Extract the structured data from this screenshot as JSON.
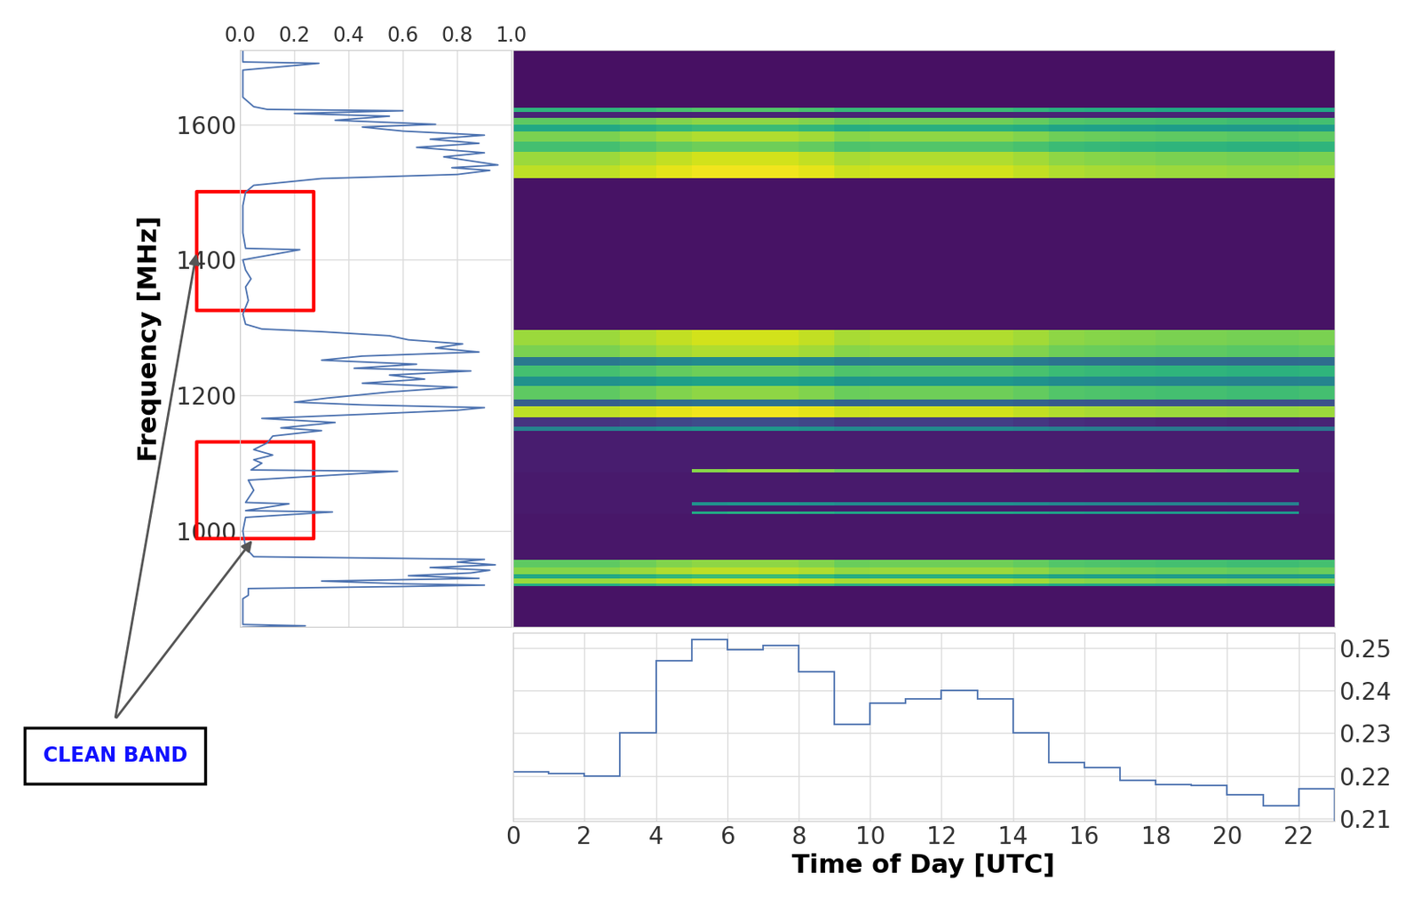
{
  "chart_data": [
    {
      "type": "line",
      "orientation": "horizontal",
      "ylabel": "Frequency [MHz]",
      "color": "#4c72b0",
      "grid": true,
      "xlim": [
        0,
        1
      ],
      "xticks": [
        0.0,
        0.2,
        0.4,
        0.6,
        0.8,
        1.0
      ],
      "ylim": [
        858,
        1710
      ],
      "yticks": [
        1000,
        1200,
        1400,
        1600
      ],
      "frequency": [
        858,
        860,
        862,
        900,
        905,
        915,
        918,
        920,
        922,
        926,
        930,
        934,
        938,
        942,
        946,
        950,
        954,
        958,
        960,
        962,
        975,
        1000,
        1020,
        1028,
        1030,
        1040,
        1042,
        1060,
        1075,
        1088,
        1090,
        1100,
        1105,
        1112,
        1120,
        1130,
        1140,
        1148,
        1152,
        1160,
        1166,
        1172,
        1178,
        1182,
        1186,
        1190,
        1196,
        1205,
        1212,
        1218,
        1224,
        1230,
        1236,
        1240,
        1246,
        1252,
        1258,
        1264,
        1270,
        1276,
        1282,
        1288,
        1294,
        1298,
        1305,
        1320,
        1340,
        1360,
        1372,
        1385,
        1400,
        1415,
        1417,
        1440,
        1480,
        1500,
        1510,
        1520,
        1526,
        1532,
        1536,
        1540,
        1546,
        1552,
        1558,
        1566,
        1572,
        1578,
        1584,
        1590,
        1596,
        1600,
        1606,
        1612,
        1616,
        1620,
        1622,
        1626,
        1640,
        1660,
        1680,
        1690,
        1692,
        1710
      ],
      "values": [
        0.01,
        0.24,
        0.01,
        0.01,
        0.03,
        0.03,
        0.6,
        0.9,
        0.6,
        0.3,
        0.88,
        0.62,
        0.85,
        0.92,
        0.7,
        0.94,
        0.8,
        0.9,
        0.5,
        0.05,
        0.02,
        0.01,
        0.02,
        0.34,
        0.02,
        0.18,
        0.02,
        0.05,
        0.03,
        0.58,
        0.04,
        0.08,
        0.05,
        0.12,
        0.05,
        0.1,
        0.12,
        0.3,
        0.15,
        0.35,
        0.08,
        0.45,
        0.8,
        0.9,
        0.45,
        0.2,
        0.32,
        0.55,
        0.8,
        0.45,
        0.68,
        0.55,
        0.85,
        0.42,
        0.65,
        0.3,
        0.45,
        0.88,
        0.72,
        0.82,
        0.62,
        0.55,
        0.3,
        0.08,
        0.02,
        0.01,
        0.03,
        0.02,
        0.04,
        0.02,
        0.01,
        0.22,
        0.02,
        0.01,
        0.01,
        0.02,
        0.05,
        0.3,
        0.8,
        0.92,
        0.78,
        0.95,
        0.85,
        0.75,
        0.9,
        0.65,
        0.88,
        0.7,
        0.9,
        0.6,
        0.45,
        0.72,
        0.35,
        0.55,
        0.2,
        0.6,
        0.1,
        0.05,
        0.01,
        0.01,
        0.01,
        0.29,
        0.01,
        0.01
      ],
      "annotations": [
        {
          "text": "CLEAN BAND",
          "frequency_ranges": [
            [
              1326,
              1500
            ],
            [
              989,
              1131
            ]
          ]
        }
      ]
    },
    {
      "type": "heatmap",
      "tick_labels": false,
      "xlim": [
        0,
        23
      ],
      "ylim": [
        858,
        1710
      ],
      "color_range": [
        0,
        1
      ],
      "x_edges": [
        0,
        1,
        2,
        3,
        4,
        5,
        6,
        7,
        8,
        9,
        10,
        11,
        12,
        13,
        14,
        15,
        16,
        17,
        18,
        19,
        20,
        21,
        22,
        23
      ],
      "y_edges": [
        858,
        918,
        922,
        930,
        936,
        946,
        958,
        1025,
        1029,
        1038,
        1042,
        1086,
        1091,
        1148,
        1154,
        1168,
        1184,
        1194,
        1214,
        1228,
        1244,
        1256,
        1274,
        1296,
        1520,
        1540,
        1560,
        1574,
        1590,
        1600,
        1610,
        1618,
        1625,
        1710
      ],
      "cells": [
        [
          0.05,
          0.05,
          0.05,
          0.05,
          0.05,
          0.05,
          0.05,
          0.05,
          0.05,
          0.05,
          0.05,
          0.05,
          0.05,
          0.05,
          0.05,
          0.05,
          0.05,
          0.05,
          0.05,
          0.05,
          0.05,
          0.05,
          0.05
        ],
        [
          0.62,
          0.62,
          0.62,
          0.65,
          0.68,
          0.7,
          0.7,
          0.7,
          0.68,
          0.64,
          0.65,
          0.65,
          0.65,
          0.65,
          0.63,
          0.6,
          0.59,
          0.58,
          0.57,
          0.57,
          0.56,
          0.56,
          0.57
        ],
        [
          0.85,
          0.85,
          0.85,
          0.88,
          0.91,
          0.93,
          0.93,
          0.93,
          0.91,
          0.87,
          0.88,
          0.88,
          0.88,
          0.88,
          0.86,
          0.83,
          0.82,
          0.81,
          0.8,
          0.8,
          0.79,
          0.79,
          0.8
        ],
        [
          0.6,
          0.6,
          0.6,
          0.63,
          0.66,
          0.68,
          0.68,
          0.68,
          0.66,
          0.62,
          0.63,
          0.63,
          0.63,
          0.63,
          0.61,
          0.58,
          0.57,
          0.56,
          0.55,
          0.55,
          0.54,
          0.54,
          0.55
        ],
        [
          0.82,
          0.82,
          0.82,
          0.85,
          0.88,
          0.9,
          0.9,
          0.9,
          0.88,
          0.84,
          0.85,
          0.85,
          0.85,
          0.85,
          0.83,
          0.8,
          0.79,
          0.78,
          0.77,
          0.77,
          0.76,
          0.76,
          0.77
        ],
        [
          0.75,
          0.75,
          0.75,
          0.78,
          0.81,
          0.83,
          0.83,
          0.83,
          0.81,
          0.77,
          0.78,
          0.78,
          0.78,
          0.78,
          0.76,
          0.73,
          0.72,
          0.71,
          0.7,
          0.7,
          0.69,
          0.69,
          0.7
        ],
        [
          0.06,
          0.06,
          0.06,
          0.06,
          0.06,
          0.06,
          0.06,
          0.06,
          0.06,
          0.06,
          0.06,
          0.06,
          0.06,
          0.06,
          0.06,
          0.06,
          0.06,
          0.06,
          0.06,
          0.06,
          0.06,
          0.06,
          0.06
        ],
        [
          0.07,
          0.07,
          0.07,
          0.07,
          0.07,
          0.6,
          0.62,
          0.62,
          0.61,
          0.58,
          0.59,
          0.59,
          0.59,
          0.59,
          0.58,
          0.56,
          0.55,
          0.55,
          0.54,
          0.54,
          0.53,
          0.53,
          0.07
        ],
        [
          0.07,
          0.07,
          0.07,
          0.07,
          0.07,
          0.07,
          0.07,
          0.07,
          0.07,
          0.07,
          0.07,
          0.07,
          0.07,
          0.07,
          0.07,
          0.07,
          0.07,
          0.07,
          0.07,
          0.07,
          0.07,
          0.07,
          0.07
        ],
        [
          0.07,
          0.07,
          0.07,
          0.07,
          0.07,
          0.5,
          0.52,
          0.52,
          0.51,
          0.48,
          0.49,
          0.49,
          0.49,
          0.49,
          0.48,
          0.46,
          0.45,
          0.45,
          0.44,
          0.44,
          0.43,
          0.43,
          0.07
        ],
        [
          0.07,
          0.07,
          0.07,
          0.07,
          0.07,
          0.07,
          0.07,
          0.07,
          0.07,
          0.07,
          0.07,
          0.07,
          0.07,
          0.07,
          0.07,
          0.07,
          0.07,
          0.07,
          0.07,
          0.07,
          0.07,
          0.07,
          0.07
        ],
        [
          0.08,
          0.08,
          0.08,
          0.08,
          0.08,
          0.82,
          0.84,
          0.84,
          0.82,
          0.78,
          0.79,
          0.79,
          0.79,
          0.79,
          0.78,
          0.76,
          0.75,
          0.75,
          0.74,
          0.74,
          0.73,
          0.73,
          0.08
        ],
        [
          0.08,
          0.08,
          0.08,
          0.08,
          0.08,
          0.08,
          0.08,
          0.08,
          0.08,
          0.08,
          0.08,
          0.08,
          0.08,
          0.08,
          0.08,
          0.08,
          0.08,
          0.08,
          0.08,
          0.08,
          0.08,
          0.08,
          0.08
        ],
        [
          0.45,
          0.45,
          0.45,
          0.48,
          0.51,
          0.53,
          0.53,
          0.53,
          0.51,
          0.47,
          0.48,
          0.48,
          0.48,
          0.48,
          0.46,
          0.43,
          0.42,
          0.41,
          0.4,
          0.4,
          0.39,
          0.39,
          0.4
        ],
        [
          0.15,
          0.15,
          0.15,
          0.18,
          0.21,
          0.23,
          0.23,
          0.23,
          0.21,
          0.17,
          0.18,
          0.18,
          0.18,
          0.18,
          0.16,
          0.13,
          0.12,
          0.11,
          0.1,
          0.1,
          0.09,
          0.09,
          0.1
        ],
        [
          0.9,
          0.9,
          0.9,
          0.93,
          0.96,
          0.98,
          0.98,
          0.98,
          0.96,
          0.92,
          0.93,
          0.93,
          0.93,
          0.93,
          0.91,
          0.88,
          0.87,
          0.86,
          0.85,
          0.85,
          0.84,
          0.84,
          0.85
        ],
        [
          0.3,
          0.3,
          0.3,
          0.33,
          0.36,
          0.38,
          0.38,
          0.38,
          0.36,
          0.32,
          0.33,
          0.33,
          0.33,
          0.33,
          0.31,
          0.28,
          0.27,
          0.26,
          0.25,
          0.25,
          0.24,
          0.24,
          0.25
        ],
        [
          0.75,
          0.75,
          0.75,
          0.78,
          0.81,
          0.83,
          0.83,
          0.83,
          0.81,
          0.77,
          0.78,
          0.78,
          0.78,
          0.78,
          0.76,
          0.73,
          0.72,
          0.71,
          0.7,
          0.7,
          0.69,
          0.69,
          0.7
        ],
        [
          0.5,
          0.5,
          0.5,
          0.53,
          0.56,
          0.58,
          0.58,
          0.58,
          0.56,
          0.52,
          0.53,
          0.53,
          0.53,
          0.53,
          0.51,
          0.48,
          0.47,
          0.46,
          0.45,
          0.45,
          0.44,
          0.44,
          0.45
        ],
        [
          0.7,
          0.7,
          0.7,
          0.73,
          0.76,
          0.78,
          0.78,
          0.78,
          0.76,
          0.72,
          0.73,
          0.73,
          0.73,
          0.73,
          0.71,
          0.68,
          0.67,
          0.66,
          0.65,
          0.65,
          0.64,
          0.64,
          0.65
        ],
        [
          0.4,
          0.4,
          0.4,
          0.43,
          0.46,
          0.48,
          0.48,
          0.48,
          0.46,
          0.42,
          0.43,
          0.43,
          0.43,
          0.43,
          0.41,
          0.38,
          0.37,
          0.36,
          0.35,
          0.35,
          0.34,
          0.34,
          0.35
        ],
        [
          0.8,
          0.8,
          0.8,
          0.83,
          0.86,
          0.88,
          0.88,
          0.88,
          0.86,
          0.82,
          0.83,
          0.83,
          0.83,
          0.83,
          0.81,
          0.78,
          0.77,
          0.76,
          0.75,
          0.75,
          0.74,
          0.74,
          0.75
        ],
        [
          0.85,
          0.85,
          0.85,
          0.88,
          0.91,
          0.93,
          0.93,
          0.93,
          0.91,
          0.87,
          0.88,
          0.88,
          0.88,
          0.88,
          0.86,
          0.83,
          0.82,
          0.81,
          0.8,
          0.8,
          0.79,
          0.79,
          0.8
        ],
        [
          0.05,
          0.05,
          0.05,
          0.05,
          0.05,
          0.05,
          0.05,
          0.05,
          0.05,
          0.05,
          0.05,
          0.05,
          0.05,
          0.05,
          0.05,
          0.05,
          0.05,
          0.05,
          0.05,
          0.05,
          0.05,
          0.05,
          0.05
        ],
        [
          0.9,
          0.9,
          0.9,
          0.93,
          0.96,
          0.98,
          0.98,
          0.98,
          0.96,
          0.92,
          0.93,
          0.93,
          0.93,
          0.93,
          0.91,
          0.88,
          0.87,
          0.86,
          0.85,
          0.85,
          0.84,
          0.84,
          0.85
        ],
        [
          0.85,
          0.85,
          0.85,
          0.88,
          0.91,
          0.93,
          0.93,
          0.93,
          0.91,
          0.87,
          0.88,
          0.88,
          0.88,
          0.88,
          0.86,
          0.83,
          0.82,
          0.81,
          0.8,
          0.8,
          0.79,
          0.79,
          0.8
        ],
        [
          0.7,
          0.7,
          0.7,
          0.73,
          0.76,
          0.78,
          0.78,
          0.78,
          0.76,
          0.72,
          0.73,
          0.73,
          0.73,
          0.73,
          0.71,
          0.68,
          0.67,
          0.66,
          0.65,
          0.65,
          0.64,
          0.64,
          0.65
        ],
        [
          0.8,
          0.8,
          0.8,
          0.83,
          0.86,
          0.88,
          0.88,
          0.88,
          0.86,
          0.82,
          0.83,
          0.83,
          0.83,
          0.83,
          0.81,
          0.78,
          0.77,
          0.76,
          0.75,
          0.75,
          0.74,
          0.74,
          0.75
        ],
        [
          0.6,
          0.6,
          0.6,
          0.63,
          0.66,
          0.68,
          0.68,
          0.68,
          0.66,
          0.62,
          0.63,
          0.63,
          0.63,
          0.63,
          0.61,
          0.58,
          0.57,
          0.56,
          0.55,
          0.55,
          0.54,
          0.54,
          0.55
        ],
        [
          0.75,
          0.75,
          0.75,
          0.78,
          0.81,
          0.83,
          0.83,
          0.83,
          0.81,
          0.77,
          0.78,
          0.78,
          0.78,
          0.78,
          0.76,
          0.73,
          0.72,
          0.71,
          0.7,
          0.7,
          0.69,
          0.69,
          0.7
        ],
        [
          0.1,
          0.1,
          0.1,
          0.1,
          0.1,
          0.1,
          0.1,
          0.1,
          0.1,
          0.1,
          0.1,
          0.1,
          0.1,
          0.1,
          0.1,
          0.1,
          0.1,
          0.1,
          0.1,
          0.1,
          0.1,
          0.1,
          0.1
        ],
        [
          0.65,
          0.65,
          0.65,
          0.68,
          0.71,
          0.73,
          0.73,
          0.73,
          0.71,
          0.67,
          0.68,
          0.68,
          0.68,
          0.68,
          0.66,
          0.63,
          0.62,
          0.61,
          0.6,
          0.6,
          0.59,
          0.59,
          0.6
        ],
        [
          0.04,
          0.04,
          0.04,
          0.04,
          0.04,
          0.04,
          0.04,
          0.04,
          0.04,
          0.04,
          0.04,
          0.04,
          0.04,
          0.04,
          0.04,
          0.04,
          0.04,
          0.04,
          0.04,
          0.04,
          0.04,
          0.04,
          0.04
        ]
      ]
    },
    {
      "type": "step",
      "xlabel": "Time of Day [UTC]",
      "color": "#4c72b0",
      "grid": true,
      "xlim": [
        0,
        23
      ],
      "xticks": [
        0,
        2,
        4,
        6,
        8,
        10,
        12,
        14,
        16,
        18,
        20,
        22
      ],
      "ylim": [
        0.2094,
        0.2536
      ],
      "yticks": [
        0.21,
        0.22,
        0.23,
        0.24,
        0.25
      ],
      "bins": [
        0,
        1,
        2,
        3,
        4,
        5,
        6,
        7,
        8,
        9,
        10,
        11,
        12,
        13,
        14,
        15,
        16,
        17,
        18,
        19,
        20,
        21,
        22,
        23
      ],
      "values": [
        0.221,
        0.2205,
        0.22,
        0.23,
        0.247,
        0.252,
        0.2495,
        0.2505,
        0.2445,
        0.232,
        0.237,
        0.238,
        0.24,
        0.238,
        0.23,
        0.223,
        0.222,
        0.219,
        0.218,
        0.2178,
        0.2155,
        0.213,
        0.217
      ]
    }
  ]
}
